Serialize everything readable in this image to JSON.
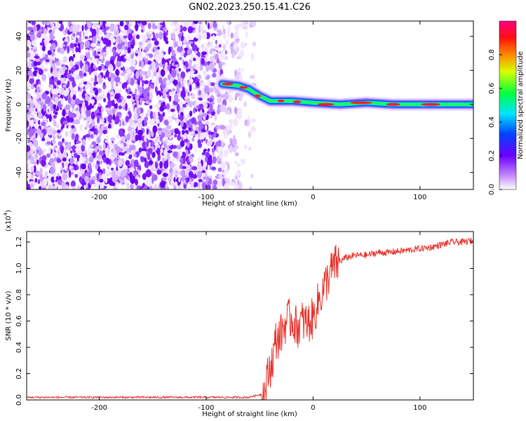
{
  "title": "GN02.2023.250.15.41.C26",
  "chart_data": [
    {
      "type": "heatmap",
      "xlabel": "Height of straight line (km)",
      "ylabel": "Frequency (Hz)",
      "xlim": [
        -268,
        150
      ],
      "ylim": [
        -50,
        49
      ],
      "x_ticks": [
        -200,
        -100,
        0,
        100
      ],
      "x_tick_labels": [
        "-200",
        "-100",
        "0",
        "100"
      ],
      "y_ticks": [
        -40,
        -20,
        0,
        20,
        40
      ],
      "y_tick_labels": [
        "-40",
        "-20",
        "0",
        "20",
        "40"
      ],
      "colorbar": {
        "label": "Normalized spectral amplitude",
        "range": [
          0,
          1
        ],
        "ticks": [
          0,
          0.2,
          0.4,
          0.6,
          0.8
        ],
        "tick_labels": [
          "0.0",
          "0.2",
          "0.4",
          "0.6",
          "0.8"
        ],
        "colors": [
          "#ffffff",
          "#a040ff",
          "#0000ff",
          "#00ffff",
          "#00ff00",
          "#ffff00",
          "#ff0000",
          "#ff0080"
        ]
      },
      "dominant_band": {
        "x": [
          -85,
          -70,
          -60,
          -50,
          -40,
          -30,
          -20,
          -10,
          0,
          25,
          50,
          75,
          100,
          125,
          150
        ],
        "frequency": [
          12,
          11,
          9,
          5,
          2,
          2,
          2,
          1.5,
          1,
          0,
          1,
          0,
          0,
          0,
          0
        ]
      },
      "grid": false
    },
    {
      "type": "line",
      "xlabel": "Height of straight line (km)",
      "ylabel": "SNR (10 * v/v)",
      "y_multiplier_label": "(x10",
      "y_multiplier_exp": "4",
      "xlim": [
        -268,
        150
      ],
      "ylim": [
        0,
        1.28
      ],
      "x_ticks": [
        -200,
        -100,
        0,
        100
      ],
      "x_tick_labels": [
        "-200",
        "-100",
        "0",
        "100"
      ],
      "y_ticks": [
        0,
        0.2,
        0.4,
        0.6,
        0.8,
        1.0,
        1.2
      ],
      "y_tick_labels": [
        "0.0",
        "0.2",
        "0.4",
        "0.6",
        "0.8",
        "1.0",
        "1.2"
      ],
      "color": "#e8302a",
      "x": [
        -268,
        -200,
        -100,
        -60,
        -45,
        -42,
        -38,
        -35,
        -30,
        -25,
        -20,
        -15,
        -10,
        -5,
        0,
        5,
        10,
        15,
        20,
        25,
        30,
        40,
        50,
        60,
        70,
        80,
        90,
        100,
        110,
        120,
        130,
        140,
        150
      ],
      "y": [
        0.02,
        0.02,
        0.02,
        0.02,
        0.05,
        0.2,
        0.3,
        0.45,
        0.5,
        0.6,
        0.62,
        0.55,
        0.6,
        0.58,
        0.62,
        0.75,
        0.85,
        0.95,
        1.02,
        1.05,
        1.08,
        1.1,
        1.1,
        1.12,
        1.12,
        1.13,
        1.14,
        1.15,
        1.16,
        1.18,
        1.2,
        1.2,
        1.21
      ]
    }
  ]
}
